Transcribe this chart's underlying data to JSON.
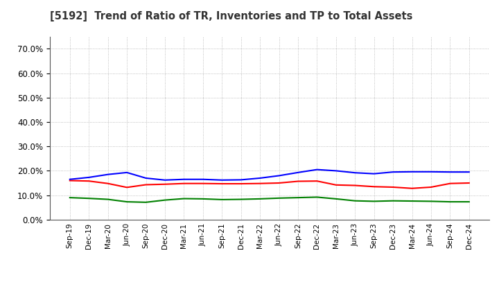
{
  "title": "[5192]  Trend of Ratio of TR, Inventories and TP to Total Assets",
  "x_labels": [
    "Sep-19",
    "Dec-19",
    "Mar-20",
    "Jun-20",
    "Sep-20",
    "Dec-20",
    "Mar-21",
    "Jun-21",
    "Sep-21",
    "Dec-21",
    "Mar-22",
    "Jun-22",
    "Sep-22",
    "Dec-22",
    "Mar-23",
    "Jun-23",
    "Sep-23",
    "Dec-23",
    "Mar-24",
    "Jun-24",
    "Sep-24",
    "Dec-24"
  ],
  "trade_receivables": [
    0.16,
    0.158,
    0.148,
    0.132,
    0.143,
    0.145,
    0.148,
    0.148,
    0.147,
    0.147,
    0.148,
    0.15,
    0.157,
    0.158,
    0.142,
    0.14,
    0.135,
    0.133,
    0.128,
    0.133,
    0.148,
    0.15
  ],
  "inventories": [
    0.165,
    0.173,
    0.185,
    0.193,
    0.17,
    0.162,
    0.165,
    0.165,
    0.162,
    0.163,
    0.17,
    0.18,
    0.193,
    0.205,
    0.2,
    0.192,
    0.188,
    0.195,
    0.196,
    0.196,
    0.195,
    0.195
  ],
  "trade_payables": [
    0.09,
    0.087,
    0.083,
    0.073,
    0.071,
    0.08,
    0.086,
    0.085,
    0.082,
    0.083,
    0.085,
    0.088,
    0.09,
    0.092,
    0.085,
    0.077,
    0.075,
    0.077,
    0.076,
    0.075,
    0.073,
    0.073
  ],
  "tr_color": "#ff0000",
  "inv_color": "#0000ff",
  "tp_color": "#008000",
  "ylim": [
    0.0,
    0.75
  ],
  "yticks": [
    0.0,
    0.1,
    0.2,
    0.3,
    0.4,
    0.5,
    0.6,
    0.7
  ],
  "background_color": "#ffffff",
  "grid_color": "#999999"
}
